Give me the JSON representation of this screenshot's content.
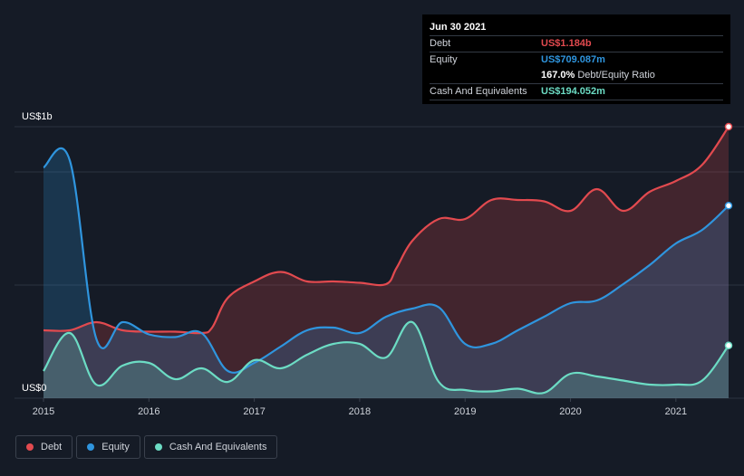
{
  "chart_data": {
    "type": "area",
    "y_unit_label_top": "US$1b",
    "y_unit_label_bottom": "US$0",
    "ylim": [
      0,
      1.0
    ],
    "xlim": [
      2015.0,
      2021.5
    ],
    "x_ticks": [
      "2015",
      "2016",
      "2017",
      "2018",
      "2019",
      "2020",
      "2021"
    ],
    "x_tick_values": [
      2015,
      2016,
      2017,
      2018,
      2019,
      2020,
      2021
    ],
    "grid": true,
    "legend_position": "bottom-left",
    "series": [
      {
        "name": "Debt",
        "color": "#e24a4f",
        "points": [
          [
            2015.0,
            0.25
          ],
          [
            2015.25,
            0.25
          ],
          [
            2015.5,
            0.28
          ],
          [
            2015.75,
            0.25
          ],
          [
            2016.0,
            0.245
          ],
          [
            2016.25,
            0.245
          ],
          [
            2016.5,
            0.24
          ],
          [
            2016.6,
            0.26
          ],
          [
            2016.75,
            0.37
          ],
          [
            2017.0,
            0.43
          ],
          [
            2017.25,
            0.465
          ],
          [
            2017.5,
            0.43
          ],
          [
            2017.75,
            0.43
          ],
          [
            2018.0,
            0.425
          ],
          [
            2018.25,
            0.42
          ],
          [
            2018.35,
            0.48
          ],
          [
            2018.5,
            0.58
          ],
          [
            2018.75,
            0.66
          ],
          [
            2019.0,
            0.66
          ],
          [
            2019.25,
            0.73
          ],
          [
            2019.5,
            0.73
          ],
          [
            2019.75,
            0.725
          ],
          [
            2020.0,
            0.69
          ],
          [
            2020.25,
            0.77
          ],
          [
            2020.5,
            0.69
          ],
          [
            2020.75,
            0.76
          ],
          [
            2021.0,
            0.8
          ],
          [
            2021.25,
            0.86
          ],
          [
            2021.5,
            1.184
          ]
        ]
      },
      {
        "name": "Equity",
        "color": "#2f95de",
        "points": [
          [
            2015.0,
            0.85
          ],
          [
            2015.25,
            0.875
          ],
          [
            2015.5,
            0.22
          ],
          [
            2015.75,
            0.28
          ],
          [
            2016.0,
            0.235
          ],
          [
            2016.25,
            0.225
          ],
          [
            2016.5,
            0.24
          ],
          [
            2016.75,
            0.1
          ],
          [
            2017.0,
            0.13
          ],
          [
            2017.25,
            0.19
          ],
          [
            2017.5,
            0.25
          ],
          [
            2017.75,
            0.26
          ],
          [
            2018.0,
            0.24
          ],
          [
            2018.25,
            0.3
          ],
          [
            2018.5,
            0.33
          ],
          [
            2018.75,
            0.335
          ],
          [
            2019.0,
            0.2
          ],
          [
            2019.25,
            0.2
          ],
          [
            2019.5,
            0.25
          ],
          [
            2019.75,
            0.3
          ],
          [
            2020.0,
            0.35
          ],
          [
            2020.25,
            0.36
          ],
          [
            2020.5,
            0.42
          ],
          [
            2020.75,
            0.49
          ],
          [
            2021.0,
            0.57
          ],
          [
            2021.25,
            0.62
          ],
          [
            2021.5,
            0.709
          ]
        ]
      },
      {
        "name": "Cash And Equivalents",
        "color": "#6cdcc4",
        "points": [
          [
            2015.0,
            0.1
          ],
          [
            2015.25,
            0.24
          ],
          [
            2015.5,
            0.05
          ],
          [
            2015.75,
            0.12
          ],
          [
            2016.0,
            0.13
          ],
          [
            2016.25,
            0.07
          ],
          [
            2016.5,
            0.11
          ],
          [
            2016.75,
            0.06
          ],
          [
            2017.0,
            0.14
          ],
          [
            2017.25,
            0.11
          ],
          [
            2017.5,
            0.16
          ],
          [
            2017.75,
            0.2
          ],
          [
            2018.0,
            0.2
          ],
          [
            2018.25,
            0.15
          ],
          [
            2018.5,
            0.28
          ],
          [
            2018.75,
            0.06
          ],
          [
            2019.0,
            0.03
          ],
          [
            2019.25,
            0.025
          ],
          [
            2019.5,
            0.035
          ],
          [
            2019.75,
            0.02
          ],
          [
            2020.0,
            0.09
          ],
          [
            2020.25,
            0.08
          ],
          [
            2020.5,
            0.065
          ],
          [
            2020.75,
            0.05
          ],
          [
            2021.0,
            0.05
          ],
          [
            2021.25,
            0.065
          ],
          [
            2021.5,
            0.194
          ]
        ]
      }
    ]
  },
  "tooltip": {
    "date": "Jun 30 2021",
    "debt_label": "Debt",
    "debt_value": "US$1.184b",
    "equity_label": "Equity",
    "equity_value": "US$709.087m",
    "ratio_value": "167.0%",
    "ratio_label": "Debt/Equity Ratio",
    "cash_label": "Cash And Equivalents",
    "cash_value": "US$194.052m"
  },
  "legend": [
    {
      "name": "Debt",
      "color": "#e24a4f"
    },
    {
      "name": "Equity",
      "color": "#2f95de"
    },
    {
      "name": "Cash And Equivalents",
      "color": "#6cdcc4"
    }
  ]
}
